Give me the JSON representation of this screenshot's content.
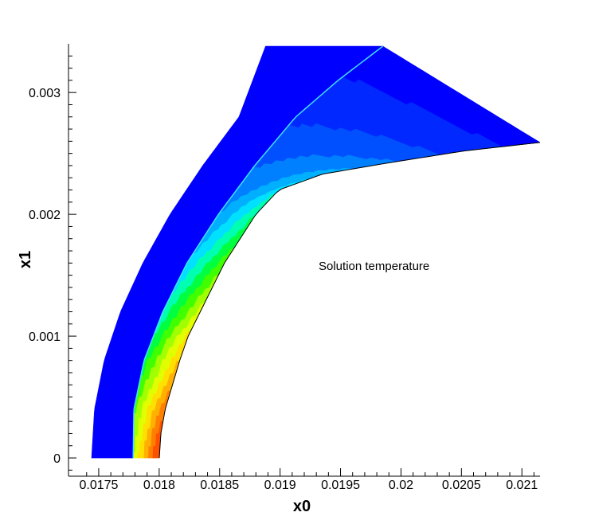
{
  "chart_data": {
    "type": "contour",
    "title": "",
    "annotation": "Solution temperature",
    "xlabel": "x0",
    "ylabel": "x1",
    "xlim": [
      0.01725,
      0.02115
    ],
    "ylim": [
      -0.00015,
      0.0034
    ],
    "x_ticks": [
      0.0175,
      0.018,
      0.0185,
      0.019,
      0.0195,
      0.02,
      0.0205,
      0.021
    ],
    "x_tick_labels": [
      "0.0175",
      "0.018",
      "0.0185",
      "0.019",
      "0.0195",
      "0.02",
      "0.0205",
      "0.021"
    ],
    "y_ticks": [
      0,
      0.001,
      0.002,
      0.003
    ],
    "y_tick_labels": [
      "0",
      "0.001",
      "0.002",
      "0.003"
    ],
    "outer_boundary": [
      [
        0.017441,
        0
      ],
      [
        0.017465,
        0.0004
      ],
      [
        0.017545,
        0.0008
      ],
      [
        0.01768,
        0.0012
      ],
      [
        0.017865,
        0.0016
      ],
      [
        0.01809,
        0.002
      ],
      [
        0.01836,
        0.0024
      ],
      [
        0.01866,
        0.0028
      ],
      [
        0.01888,
        0.00338
      ]
    ],
    "shock_curve": [
      [
        0.017785,
        0
      ],
      [
        0.017791,
        0.0004
      ],
      [
        0.017875,
        0.0008
      ],
      [
        0.01803,
        0.0012
      ],
      [
        0.01823,
        0.0016
      ],
      [
        0.01849,
        0.002
      ],
      [
        0.01879,
        0.0024
      ],
      [
        0.01913,
        0.0028
      ],
      [
        0.01948,
        0.0031
      ],
      [
        0.01985,
        0.00338
      ]
    ],
    "body_surface": [
      [
        0.018001,
        0
      ],
      [
        0.018014,
        0.0002
      ],
      [
        0.01805,
        0.0004
      ],
      [
        0.01811,
        0.0006
      ],
      [
        0.01817,
        0.0008
      ],
      [
        0.01824,
        0.001
      ],
      [
        0.01834,
        0.0012
      ],
      [
        0.01844,
        0.0014
      ],
      [
        0.01854,
        0.0016
      ],
      [
        0.01867,
        0.0018
      ],
      [
        0.0188,
        0.002
      ],
      [
        0.01899,
        0.0022
      ],
      [
        0.01935,
        0.00233
      ],
      [
        0.01988,
        0.00242
      ],
      [
        0.02052,
        0.00252
      ],
      [
        0.02115,
        0.00259
      ]
    ],
    "contour_levels": [
      {
        "color": "#0000ff"
      },
      {
        "color": "#0028ff"
      },
      {
        "color": "#0050ff"
      },
      {
        "color": "#0080ff"
      },
      {
        "color": "#00b0ff"
      },
      {
        "color": "#00e0ff"
      },
      {
        "color": "#00ffb0"
      },
      {
        "color": "#00ff40"
      },
      {
        "color": "#40ff00"
      },
      {
        "color": "#a0ff00"
      },
      {
        "color": "#e0ff00"
      },
      {
        "color": "#ffe000"
      },
      {
        "color": "#ffb000"
      },
      {
        "color": "#ff8000"
      },
      {
        "color": "#ff5000"
      }
    ]
  }
}
